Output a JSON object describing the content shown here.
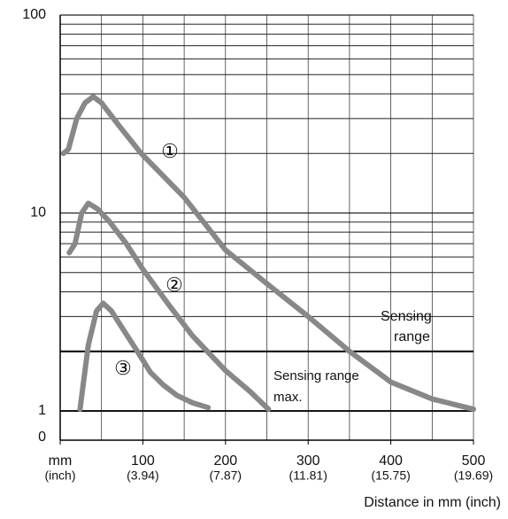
{
  "chart_data": {
    "type": "line",
    "x_label": "Distance in mm (inch)",
    "xlim": [
      0,
      500
    ],
    "xticks": [
      {
        "value": 0,
        "label": "mm"
      },
      100,
      200,
      300,
      400,
      500
    ],
    "xtick_sublabels": [
      "(inch)",
      "(3.94)",
      "(7.87)",
      "(11.81)",
      "(15.75)",
      "(19.69)"
    ],
    "x_grid": [
      50,
      100,
      150,
      200,
      250,
      300,
      350,
      400,
      450,
      500
    ],
    "ylim": [
      1,
      100
    ],
    "y_floor_label": "0",
    "log_y": true,
    "yticks": [
      1,
      10,
      100
    ],
    "y_grid": [
      2,
      3,
      4,
      5,
      6,
      7,
      8,
      9,
      20,
      30,
      40,
      50,
      60,
      70,
      80,
      90
    ],
    "ref_lines": [
      1,
      2
    ],
    "series": [
      {
        "name": "①",
        "color": "#888888",
        "x": [
          4,
          10,
          20,
          30,
          40,
          50,
          70,
          98,
          150,
          200,
          250,
          300,
          350,
          400,
          450,
          500
        ],
        "values": [
          20,
          21,
          30,
          36,
          38.7,
          36,
          28,
          20,
          12,
          6.5,
          4.4,
          3.0,
          2.0,
          1.4,
          1.15,
          1.02
        ]
      },
      {
        "name": "②",
        "color": "#888888",
        "x": [
          11,
          18,
          26,
          34,
          45,
          60,
          80,
          100,
          130,
          160,
          200,
          230,
          252
        ],
        "values": [
          6.3,
          7,
          10,
          11.2,
          10.5,
          9,
          7,
          5.2,
          3.5,
          2.4,
          1.6,
          1.25,
          1.02
        ]
      },
      {
        "name": "③",
        "color": "#888888",
        "x": [
          24,
          34,
          44,
          52,
          62,
          77,
          95,
          109,
          125,
          141,
          160,
          179
        ],
        "values": [
          1.02,
          2.15,
          3.2,
          3.5,
          3.2,
          2.55,
          1.95,
          1.57,
          1.35,
          1.2,
          1.1,
          1.04
        ]
      }
    ],
    "annotations": [
      {
        "lines": [
          "Sensing",
          "range"
        ]
      },
      {
        "lines": [
          "Sensing range",
          "max."
        ]
      }
    ]
  }
}
